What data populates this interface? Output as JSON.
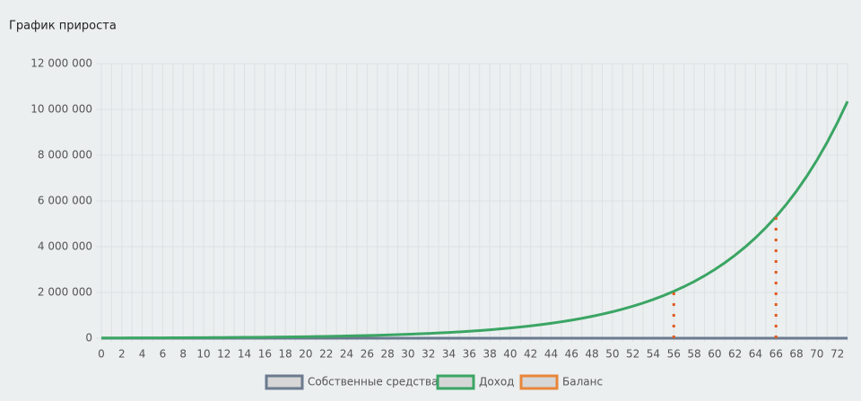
{
  "chart_data": {
    "type": "line",
    "title": "График прироста",
    "x": [
      0,
      null,
      2,
      null,
      4,
      null,
      6,
      null,
      8,
      null,
      10,
      null,
      12,
      null,
      14,
      null,
      16,
      null,
      18,
      null,
      20,
      null,
      22,
      null,
      24,
      null,
      26,
      null,
      28,
      null,
      30,
      null,
      32,
      null,
      34,
      null,
      36,
      null,
      38,
      null,
      40,
      null,
      42,
      null,
      44,
      null,
      46,
      null,
      48,
      null,
      50,
      null,
      52,
      null,
      54,
      null,
      56,
      null,
      58,
      null,
      60,
      null,
      62,
      null,
      64,
      null,
      66,
      null,
      68,
      null,
      70,
      null,
      72,
      null
    ],
    "series": [
      {
        "name": "Собственные средства",
        "color": "#6b7a8f",
        "values": [
          0,
          0,
          0,
          0,
          0,
          0,
          0,
          0,
          0,
          0,
          0,
          0,
          0,
          0,
          0,
          0,
          0,
          0,
          0,
          0,
          0,
          0,
          0,
          0,
          0,
          0,
          0,
          0,
          0,
          0,
          0,
          0,
          0,
          0,
          0,
          0,
          0,
          0,
          0,
          0,
          0,
          0,
          0,
          0,
          0,
          0,
          0,
          0,
          0,
          0,
          0,
          0,
          0,
          0,
          0,
          0,
          0,
          0,
          0,
          0,
          0,
          0,
          0,
          0,
          0,
          0,
          0,
          0,
          0,
          0,
          0,
          0,
          0,
          0
        ]
      },
      {
        "name": "Доход",
        "color": "#3ba564",
        "values": [
          10000,
          11000,
          12000,
          13000,
          14000,
          16000,
          17000,
          19000,
          21000,
          23000,
          26000,
          28000,
          31000,
          34000,
          37000,
          41000,
          45000,
          50000,
          55000,
          60000,
          66000,
          73000,
          80000,
          88000,
          97000,
          107000,
          117000,
          129000,
          142000,
          156000,
          172000,
          189000,
          208000,
          229000,
          252000,
          277000,
          304000,
          335000,
          368000,
          405000,
          446000,
          490000,
          539000,
          593000,
          653000,
          718000,
          790000,
          869000,
          956000,
          1051000,
          1156000,
          1272000,
          1399000,
          1539000,
          1693000,
          1862000,
          2048000,
          2253000,
          2479000,
          2726000,
          2999000,
          3299000,
          3629000,
          3992000,
          4391000,
          4830000,
          5313000,
          5844000,
          6429000,
          7072000,
          7779000,
          8557000,
          9413000,
          10354000
        ]
      },
      {
        "name": "Баланс",
        "color": "#e8863a",
        "values": [
          null,
          null,
          null,
          null,
          null,
          null,
          null,
          null,
          null,
          null,
          null,
          null,
          null,
          null,
          null,
          null,
          null,
          null,
          null,
          null,
          null,
          null,
          null,
          null,
          null,
          null,
          null,
          null,
          null,
          null,
          null,
          null,
          null,
          null,
          null,
          null,
          null,
          null,
          null,
          null,
          null,
          null,
          null,
          null,
          null,
          null,
          null,
          null,
          null,
          null,
          null,
          null,
          null,
          null,
          null,
          null,
          2048000,
          null,
          null,
          null,
          null,
          null,
          null,
          null,
          null,
          null,
          5313000,
          null,
          null,
          null,
          null,
          null,
          null,
          null
        ]
      }
    ],
    "ylim": [
      0,
      12000000
    ],
    "yticks": [
      {
        "value": 0,
        "label": "0"
      },
      {
        "value": 2000000,
        "label": "2 000 000"
      },
      {
        "value": 4000000,
        "label": "4 000 000"
      },
      {
        "value": 6000000,
        "label": "6 000 000"
      },
      {
        "value": 8000000,
        "label": "8 000 000"
      },
      {
        "value": 10000000,
        "label": "10 000 000"
      },
      {
        "value": 12000000,
        "label": "12 000 000"
      }
    ],
    "grid": true
  }
}
